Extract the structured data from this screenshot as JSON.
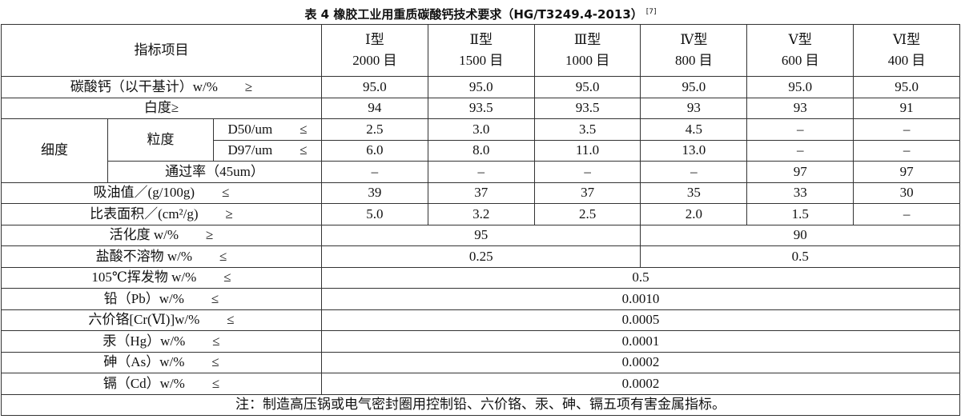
{
  "title": "表 4 橡胶工业用重质碳酸钙技术要求（HG/T3249.4-2013）",
  "title_ref": "[7]",
  "table": {
    "header": {
      "item": "指标项目",
      "types": [
        {
          "name": "Ⅰ型",
          "mesh": "2000 目"
        },
        {
          "name": "Ⅱ型",
          "mesh": "1500 目"
        },
        {
          "name": "Ⅲ型",
          "mesh": "1000 目"
        },
        {
          "name": "Ⅳ型",
          "mesh": "800 目"
        },
        {
          "name": "Ⅴ型",
          "mesh": "600 目"
        },
        {
          "name": "Ⅵ型",
          "mesh": "400 目"
        }
      ]
    },
    "fineness_group": "细度",
    "particle_group": "粒度",
    "rows": [
      {
        "label": "碳酸钙（以干基计）w/%",
        "symbol": "≥",
        "values": [
          "95.0",
          "95.0",
          "95.0",
          "95.0",
          "95.0",
          "95.0"
        ]
      },
      {
        "label": "白度≥",
        "values": [
          "94",
          "93.5",
          "93.5",
          "93",
          "93",
          "91"
        ]
      },
      {
        "label": "D50/um",
        "symbol": "≤",
        "values": [
          "2.5",
          "3.0",
          "3.5",
          "4.5",
          "–",
          "–"
        ]
      },
      {
        "label": "D97/um",
        "symbol": "≤",
        "values": [
          "6.0",
          "8.0",
          "11.0",
          "13.0",
          "–",
          "–"
        ]
      },
      {
        "label": "通过率（45um）",
        "values": [
          "–",
          "–",
          "–",
          "–",
          "97",
          "97"
        ]
      },
      {
        "label": "吸油值／(g/100g)",
        "symbol": "≤",
        "values": [
          "39",
          "37",
          "37",
          "35",
          "33",
          "30"
        ]
      },
      {
        "label": "比表面积／(cm²/g)",
        "symbol": "≥",
        "values": [
          "5.0",
          "3.2",
          "2.5",
          "2.0",
          "1.5",
          "–"
        ]
      },
      {
        "label": "活化度 w/%",
        "symbol": "≥",
        "values": [
          "95",
          "90"
        ]
      },
      {
        "label": "盐酸不溶物 w/%",
        "symbol": "≤",
        "values": [
          "0.25",
          "0.5"
        ]
      },
      {
        "label": "105℃挥发物 w/%",
        "symbol": "≤",
        "values": [
          "0.5"
        ]
      },
      {
        "label": "铅（Pb）w/%",
        "symbol": "≤",
        "values": [
          "0.0010"
        ]
      },
      {
        "label": "六价铬[Cr(Ⅵ)]w/%",
        "symbol": "≤",
        "values": [
          "0.0005"
        ]
      },
      {
        "label": "汞（Hg）w/%",
        "symbol": "≤",
        "values": [
          "0.0001"
        ]
      },
      {
        "label": "砷（As）w/%",
        "symbol": "≤",
        "values": [
          "0.0002"
        ]
      },
      {
        "label": "镉（Cd）w/%",
        "symbol": "≤",
        "values": [
          "0.0002"
        ]
      }
    ],
    "note": "注：制造高压锅或电气密封圈用控制铅、六价铬、汞、砷、镉五项有害金属指标。"
  }
}
